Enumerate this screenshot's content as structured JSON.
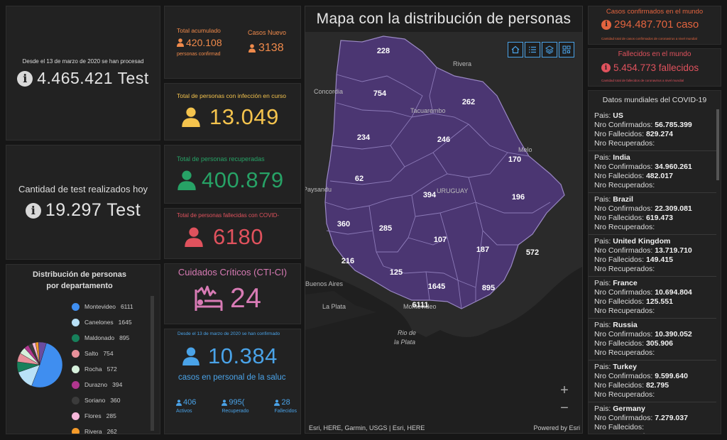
{
  "tests_total": {
    "caption": "Desde el 13 de marzo de 2020 se han procesad",
    "value": "4.465.421 Test"
  },
  "tests_today": {
    "caption": "Cantidad de test realizados hoy",
    "value": "19.297 Test"
  },
  "distribution": {
    "title": "Distribución de personas por departamento",
    "items": [
      {
        "label": "Montevideo",
        "value": "6111",
        "color": "#3f8ef0"
      },
      {
        "label": "Canelones",
        "value": "1645",
        "color": "#b9e1f7"
      },
      {
        "label": "Maldonado",
        "value": "895",
        "color": "#17805b"
      },
      {
        "label": "Salto",
        "value": "754",
        "color": "#e8909a"
      },
      {
        "label": "Rocha",
        "value": "572",
        "color": "#d6f0dc"
      },
      {
        "label": "Durazno",
        "value": "394",
        "color": "#b0368e"
      },
      {
        "label": "Soriano",
        "value": "360",
        "color": "#3b3b3b"
      },
      {
        "label": "Flores",
        "value": "285",
        "color": "#f6b7da"
      },
      {
        "label": "Rivera",
        "value": "262",
        "color": "#f59b2a"
      }
    ]
  },
  "accumulated": {
    "label": "Total acumulado",
    "value": "420.108",
    "sublabel": "personas confirmad"
  },
  "new_cases": {
    "label": "Casos Nuevo",
    "value": "3138"
  },
  "infected": {
    "label": "Total de personas con infección en curso",
    "value": "13.049",
    "color": "#f4c34d"
  },
  "recovered": {
    "label": "Total de personas recuperadas",
    "value": "400.879",
    "color": "#27a266"
  },
  "deceased": {
    "label": "Total de personas fallecidas con COVID-",
    "value": "6180",
    "color": "#e0525d"
  },
  "cti": {
    "label": "Cuidados Críticos (CTI-CI)",
    "value": "24",
    "color": "#d87bb5"
  },
  "health": {
    "caption": "Desde el 13 de marzo de 2020 se han confirmado",
    "value": "10.384",
    "sublabel": "casos en personal de la saluc",
    "stats": [
      {
        "value": "406",
        "label": "Activos"
      },
      {
        "value": "995(",
        "label": "Recuperado"
      },
      {
        "value": "28",
        "label": "Fallecidos"
      }
    ]
  },
  "map": {
    "title": "Mapa con la distribución de personas",
    "tools": [
      "home-icon",
      "list-icon",
      "layers-icon",
      "qr-icon"
    ],
    "attribution": "Esri, HERE, Garmin, USGS | Esri, HERE",
    "powered": "Powered by Esri",
    "places": [
      "Rivera",
      "Concordia",
      "Tacuarembo",
      "Melo",
      "Paysandu",
      "Buenos Aires",
      "La Plata",
      "Montevideo",
      "Rio de",
      "la Plata",
      "URUGUAY"
    ],
    "numbers": [
      "228",
      "754",
      "262",
      "234",
      "246",
      "170",
      "62",
      "394",
      "196",
      "360",
      "285",
      "107",
      "216",
      "187",
      "572",
      "125",
      "1645",
      "895",
      "6111"
    ]
  },
  "world_cases": {
    "label": "Casos confirmados en el mundo",
    "value": "294.487.701 caso",
    "note": "Cantidad total de casos confirmados de coronavirus a nivel mundial"
  },
  "world_deaths": {
    "label": "Fallecidos en el mundo",
    "value": "5.454.773 fallecidos",
    "note": "Cantidad total de fallecidos de coronavirus a nivel mundial"
  },
  "world_list": {
    "title": "Datos mundiales del COVID-19",
    "k_country": "Pais:",
    "k_confirmed": "Nro Confirmados:",
    "k_deaths": "Nro Fallecidos:",
    "k_recovered": "Nro Recuperados:",
    "rows": [
      {
        "country": "US",
        "confirmed": "56.785.399",
        "deaths": "829.274"
      },
      {
        "country": "India",
        "confirmed": "34.960.261",
        "deaths": "482.017"
      },
      {
        "country": "Brazil",
        "confirmed": "22.309.081",
        "deaths": "619.473"
      },
      {
        "country": "United Kingdom",
        "confirmed": "13.719.710",
        "deaths": "149.415"
      },
      {
        "country": "France",
        "confirmed": "10.694.804",
        "deaths": "125.551"
      },
      {
        "country": "Russia",
        "confirmed": "10.390.052",
        "deaths": "305.906"
      },
      {
        "country": "Turkey",
        "confirmed": "9.599.640",
        "deaths": "82.795"
      },
      {
        "country": "Germany",
        "confirmed": "7.279.037",
        "deaths": ""
      }
    ]
  }
}
